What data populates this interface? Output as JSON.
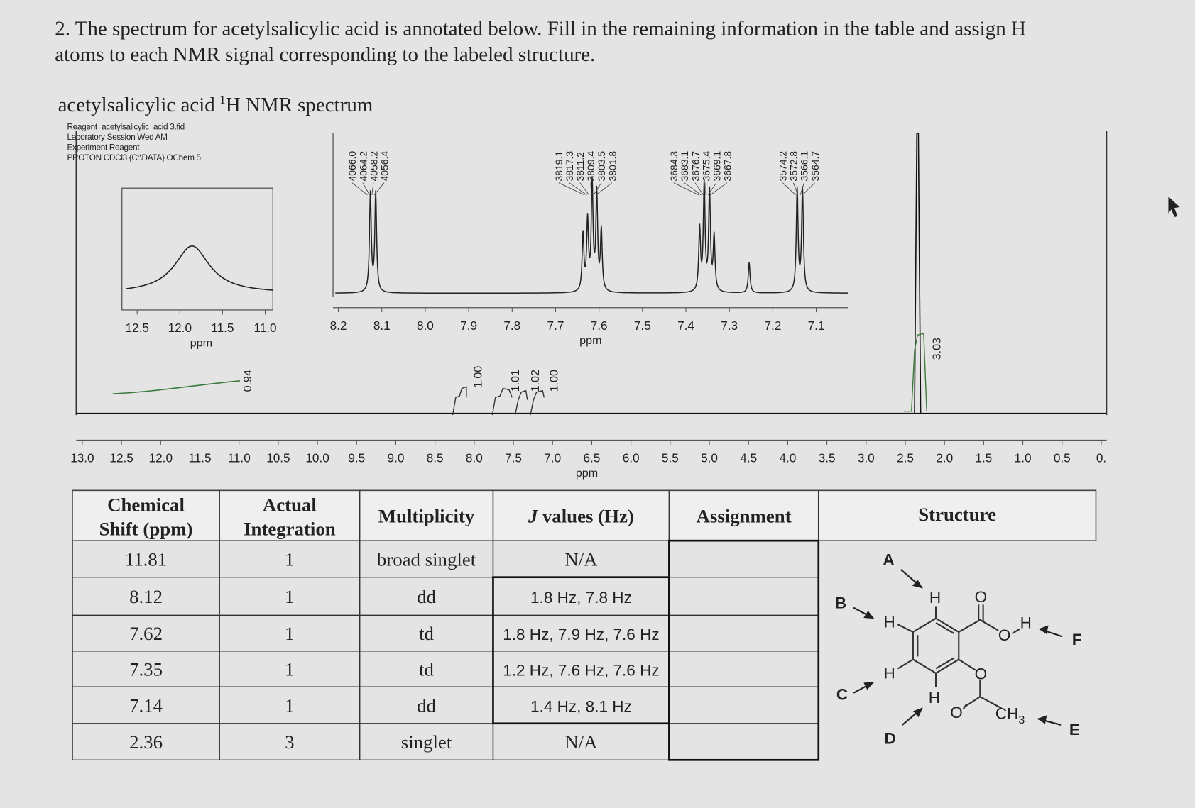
{
  "question": [
    "2. The spectrum for acetylsalicylic acid is annotated below. Fill in the remaining information in the table and assign H",
    "atoms to each NMR signal corresponding to the labeled structure."
  ],
  "spectrum": {
    "title": [
      "acetylsalicylic acid",
      "1",
      "H NMR spectrum"
    ],
    "info": [
      "Reagent_acetylsalicylic_acid 3.fid",
      "Laboratory Session Wed AM",
      "Experiment Reagent",
      "PROTON CDCl3 {C:\\DATA} OChem 5"
    ],
    "inset_left": {
      "ticks": [
        "12.5",
        "12.0",
        "11.5",
        "11.0"
      ],
      "xlabel": "ppm"
    },
    "inset_right": {
      "ticks": [
        "8.2",
        "8.1",
        "8.0",
        "7.9",
        "7.8",
        "7.7",
        "7.6",
        "7.5",
        "7.4",
        "7.3",
        "7.2",
        "7.1"
      ],
      "xlabel": "ppm",
      "peak_labels": [
        [
          "4066.0",
          "4064.2",
          "4058.2",
          "4056.4"
        ],
        [
          "3819.1",
          "3817.3",
          "3811.2",
          "3809.4",
          "3803.5",
          "3801.8"
        ],
        [
          "3684.3",
          "3683.1",
          "3676.7",
          "3675.4",
          "3669.1",
          "3667.8"
        ],
        [
          "3574.2",
          "3572.8",
          "3566.1",
          "3564.7"
        ]
      ]
    },
    "integrations": [
      "0.94",
      "1.00",
      "1.01",
      "1.02",
      "1.00",
      "3.03"
    ],
    "axis": {
      "ticks": [
        "13.0",
        "12.5",
        "12.0",
        "11.5",
        "11.0",
        "10.5",
        "10.0",
        "9.5",
        "9.0",
        "8.5",
        "8.0",
        "7.5",
        "7.0",
        "6.5",
        "6.0",
        "5.5",
        "5.0",
        "4.5",
        "4.0",
        "3.5",
        "3.0",
        "2.5",
        "2.0",
        "1.5",
        "1.0",
        "0.5",
        "0."
      ],
      "xlabel": "ppm"
    }
  },
  "table": {
    "header": [
      [
        "Chemical",
        "Shift (ppm)"
      ],
      [
        "Actual",
        "Integration"
      ],
      [
        "Multiplicity"
      ],
      [
        "J",
        "values (Hz)"
      ],
      [
        "Assignment"
      ],
      [
        "Structure"
      ]
    ],
    "rows": [
      [
        "11.81",
        "1",
        "broad singlet",
        "N/A"
      ],
      [
        "8.12",
        "1",
        "dd",
        "1.8 Hz, 7.8 Hz"
      ],
      [
        "7.62",
        "1",
        "td",
        "1.8 Hz, 7.9 Hz, 7.6 Hz"
      ],
      [
        "7.35",
        "1",
        "td",
        "1.2 Hz, 7.6 Hz, 7.6 Hz"
      ],
      [
        "7.14",
        "1",
        "dd",
        "1.4 Hz, 8.1 Hz"
      ],
      [
        "2.36",
        "3",
        "singlet",
        "N/A"
      ]
    ]
  },
  "structure": {
    "letters": [
      "A",
      "B",
      "C",
      "D",
      "E",
      "F"
    ],
    "hydrogens": [
      "H",
      "H",
      "H",
      "H",
      "H"
    ],
    "oxygens": [
      "O",
      "O",
      "O",
      "O"
    ],
    "methyl": [
      "CH",
      "3"
    ]
  }
}
